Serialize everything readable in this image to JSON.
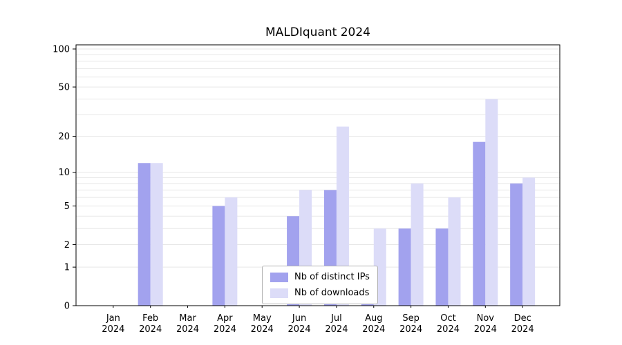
{
  "chart_data": {
    "type": "bar",
    "title": "MALDIquant 2024",
    "categories": [
      {
        "month": "Jan",
        "year": "2024"
      },
      {
        "month": "Feb",
        "year": "2024"
      },
      {
        "month": "Mar",
        "year": "2024"
      },
      {
        "month": "Apr",
        "year": "2024"
      },
      {
        "month": "May",
        "year": "2024"
      },
      {
        "month": "Jun",
        "year": "2024"
      },
      {
        "month": "Jul",
        "year": "2024"
      },
      {
        "month": "Aug",
        "year": "2024"
      },
      {
        "month": "Sep",
        "year": "2024"
      },
      {
        "month": "Oct",
        "year": "2024"
      },
      {
        "month": "Nov",
        "year": "2024"
      },
      {
        "month": "Dec",
        "year": "2024"
      }
    ],
    "series": [
      {
        "name": "Nb of distinct IPs",
        "color": "#a2a2ee",
        "values": [
          0,
          12,
          0,
          5,
          0,
          4,
          7,
          1,
          3,
          3,
          18,
          8
        ]
      },
      {
        "name": "Nb of downloads",
        "color": "#dcdcf8",
        "values": [
          0,
          12,
          0,
          6,
          0,
          7,
          24,
          3,
          8,
          6,
          40,
          9
        ]
      }
    ],
    "yticks": [
      0,
      1,
      2,
      5,
      10,
      20,
      50,
      100
    ],
    "yscale": "log(x+1)",
    "ylim": [
      0,
      110
    ],
    "grid": true,
    "axis_color": "#000000",
    "gridline_color": "#e7e7e7",
    "legend": {
      "position": "bottom-center",
      "items": [
        "Nb of distinct IPs",
        "Nb of downloads"
      ]
    }
  }
}
